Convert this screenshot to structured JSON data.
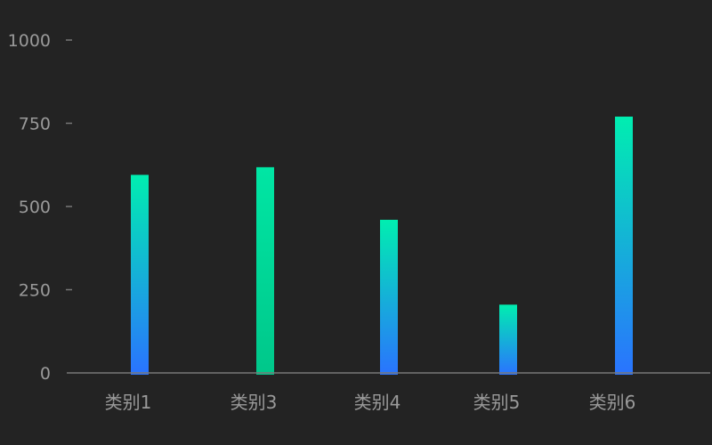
{
  "chart_data": {
    "type": "bar",
    "categories": [
      "类别1",
      "类别3",
      "类别4",
      "类别5",
      "类别6"
    ],
    "values": [
      595,
      618,
      460,
      205,
      770
    ],
    "ylim": [
      0,
      1000
    ],
    "yticks": [
      0,
      250,
      500,
      750,
      1000
    ],
    "grid": false,
    "legend": "none",
    "colors": {
      "background": "#232323",
      "axis": "#777777",
      "tick_text": "#9a9a9a",
      "bar_gradient_top": "#00eeb0",
      "bar_gradient_bottom": "#2a73ff",
      "bar_highlight_top": "#00e6a4",
      "bar_highlight_bottom": "#00c78a"
    },
    "highlighted_category": "类别3"
  }
}
